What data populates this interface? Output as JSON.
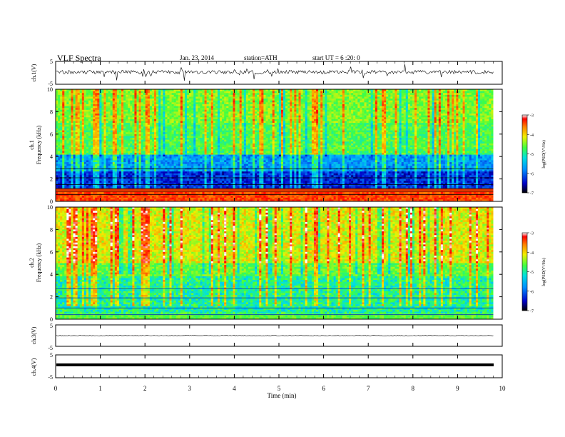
{
  "header": {
    "title": "VLF Spectra",
    "date": "Jan. 23, 2014",
    "station": "station=ATH",
    "start": "start UT =  6 :20: 0"
  },
  "chart_data": [
    {
      "type": "line",
      "panel": "ch1-waveform",
      "ylabel": "ch.1(V)",
      "yticks": [
        "5",
        "-5"
      ],
      "ylim": [
        -5,
        5
      ],
      "xlim": [
        0,
        10
      ]
    },
    {
      "type": "heatmap",
      "panel": "ch1-spectrogram",
      "ylabel": "Frequency (kHz)",
      "channel_label": "ch.1",
      "ylim": [
        0,
        10
      ],
      "yticks": [
        "0",
        "2",
        "4",
        "6",
        "8",
        "10"
      ],
      "xlim": [
        0,
        10
      ],
      "colorbar": {
        "label": "log(PSD(V²/Hz)",
        "range": [
          -7,
          -3
        ],
        "ticks": [
          "-3",
          "-4",
          "-5",
          "-6",
          "-7"
        ]
      }
    },
    {
      "type": "heatmap",
      "panel": "ch2-spectrogram",
      "ylabel": "Frequency (kHz)",
      "channel_label": "ch.2",
      "ylim": [
        0,
        10
      ],
      "yticks": [
        "0",
        "2",
        "4",
        "6",
        "8",
        "10"
      ],
      "xlim": [
        0,
        10
      ],
      "colorbar": {
        "label": "log(PSD(V²/Hz)",
        "range": [
          -7,
          -3
        ],
        "ticks": [
          "-3",
          "-4",
          "-5",
          "-6",
          "-7"
        ]
      }
    },
    {
      "type": "line",
      "panel": "ch3-waveform",
      "ylabel": "ch.3(V)",
      "yticks": [
        "5"
      ],
      "ylim": [
        -5,
        5
      ],
      "xlim": [
        0,
        10
      ]
    },
    {
      "type": "line",
      "panel": "ch4-waveform",
      "ylabel": "ch.4(V)",
      "yticks": [
        "-5",
        "5",
        "-5"
      ],
      "ylim": [
        -5,
        5
      ],
      "xlim": [
        0,
        10
      ]
    }
  ],
  "xaxis": {
    "label": "Time (min)",
    "ticks": [
      "0",
      "1",
      "2",
      "3",
      "4",
      "5",
      "6",
      "7",
      "8",
      "9",
      "10"
    ],
    "range": [
      0,
      10
    ],
    "data_end": 9.8
  },
  "colors": {
    "axis": "#000000",
    "trace": "#000000"
  }
}
